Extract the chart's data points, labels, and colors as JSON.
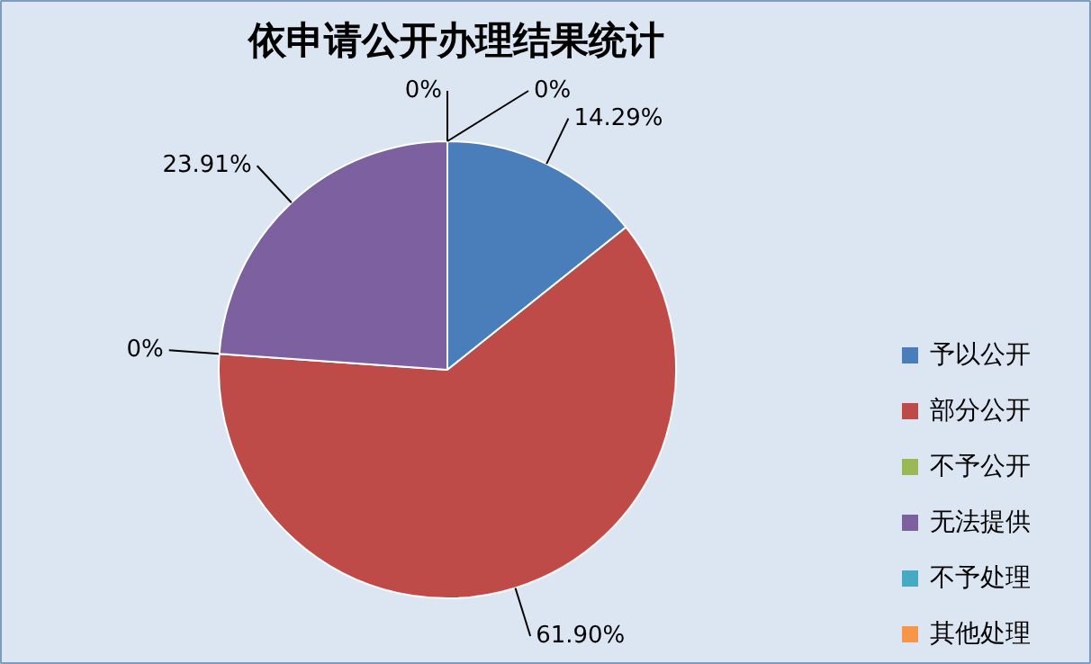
{
  "chart_data": {
    "type": "pie",
    "title": "依申请公开办理结果统计",
    "categories": [
      "予以公开",
      "部分公开",
      "不予公开",
      "无法提供",
      "不予处理",
      "其他处理"
    ],
    "values": [
      14.29,
      61.9,
      0,
      23.91,
      0,
      0
    ],
    "colors": [
      "#4a7ebb",
      "#be4b48",
      "#98b954",
      "#7d60a0",
      "#46aac5",
      "#f79646"
    ],
    "value_labels": [
      "14.29%",
      "61.90%",
      "0%",
      "23.91%",
      "0%",
      "0%"
    ],
    "legend": "right"
  }
}
